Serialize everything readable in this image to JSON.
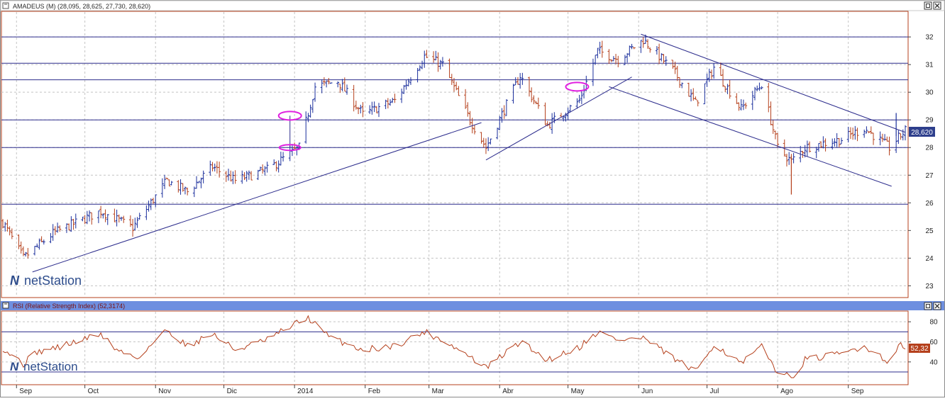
{
  "price_panel": {
    "title": "AMADEUS (M) (28,095, 28,625, 27,730, 28,620)",
    "last_price_label": "28,620",
    "watermark": "netStation",
    "y_ticks": [
      "32",
      "31",
      "30",
      "29",
      "28",
      "27",
      "26",
      "25",
      "24",
      "23"
    ]
  },
  "rsi_panel": {
    "title": "RSI (Relative Strength Index) (52,3174)",
    "last_value_label": "52,32",
    "watermark": "netStation",
    "y_ticks": [
      "80",
      "60",
      "40"
    ]
  },
  "x_axis": {
    "month_labels": [
      "Sep",
      "Oct",
      "Nov",
      "Dic",
      "2014",
      "Feb",
      "Mar",
      "Abr",
      "May",
      "Jun",
      "Jul",
      "Ago",
      "Sep"
    ]
  },
  "colors": {
    "up_bar": "#1a2e9c",
    "down_bar": "#b5401c",
    "trendline": "#2c2c8c",
    "horizontal_line": "#2c2c8c",
    "marker_ellipse": "#e020e0",
    "rsi_line": "#b5401c",
    "rsi_header_bg": "#6e8fe0",
    "price_badge": "#2e3f8c",
    "rsi_badge": "#b5401c"
  },
  "chart_data": [
    {
      "type": "ohlc",
      "title": "AMADEUS (M) (28,095, 28,625, 27,730, 28,620)",
      "ylim": [
        22.6,
        32.9
      ],
      "x_range": [
        "2013-08-26",
        "2014-09-26"
      ],
      "x_month_labels": [
        "Sep",
        "Oct",
        "Nov",
        "Dic",
        "2014",
        "Feb",
        "Mar",
        "Abr",
        "May",
        "Jun",
        "Jul",
        "Ago",
        "Sep"
      ],
      "y_ticks": [
        32,
        31,
        30,
        29,
        28,
        27,
        26,
        25,
        24,
        23
      ],
      "grid": true,
      "last_price": 28.62,
      "horizontal_levels": [
        32.0,
        31.05,
        30.45,
        29.0,
        28.0,
        25.95
      ],
      "close_keypoints": [
        {
          "date": "2013-08-26",
          "close": 25.3
        },
        {
          "date": "2013-09-04",
          "close": 24.0
        },
        {
          "date": "2013-09-17",
          "close": 24.9
        },
        {
          "date": "2013-10-08",
          "close": 25.7
        },
        {
          "date": "2013-10-22",
          "close": 25.1
        },
        {
          "date": "2013-11-06",
          "close": 26.8
        },
        {
          "date": "2013-11-15",
          "close": 26.4
        },
        {
          "date": "2013-11-26",
          "close": 27.3
        },
        {
          "date": "2013-12-06",
          "close": 26.8
        },
        {
          "date": "2013-12-20",
          "close": 27.2
        },
        {
          "date": "2014-01-03",
          "close": 28.0
        },
        {
          "date": "2014-01-10",
          "close": 30.2
        },
        {
          "date": "2014-01-20",
          "close": 30.4
        },
        {
          "date": "2014-01-31",
          "close": 29.2
        },
        {
          "date": "2014-02-14",
          "close": 29.7
        },
        {
          "date": "2014-02-27",
          "close": 31.3
        },
        {
          "date": "2014-03-07",
          "close": 31.0
        },
        {
          "date": "2014-03-19",
          "close": 29.0
        },
        {
          "date": "2014-03-26",
          "close": 28.0
        },
        {
          "date": "2014-04-02",
          "close": 29.2
        },
        {
          "date": "2014-04-10",
          "close": 30.6
        },
        {
          "date": "2014-04-22",
          "close": 28.8
        },
        {
          "date": "2014-05-06",
          "close": 29.7
        },
        {
          "date": "2014-05-14",
          "close": 31.5
        },
        {
          "date": "2014-05-23",
          "close": 31.2
        },
        {
          "date": "2014-06-03",
          "close": 31.9
        },
        {
          "date": "2014-06-16",
          "close": 30.8
        },
        {
          "date": "2014-06-26",
          "close": 29.6
        },
        {
          "date": "2014-07-04",
          "close": 30.9
        },
        {
          "date": "2014-07-16",
          "close": 29.4
        },
        {
          "date": "2014-07-25",
          "close": 30.3
        },
        {
          "date": "2014-08-01",
          "close": 28.0
        },
        {
          "date": "2014-08-07",
          "close": 27.5
        },
        {
          "date": "2014-08-13",
          "close": 28.0
        },
        {
          "date": "2014-08-29",
          "close": 28.3
        },
        {
          "date": "2014-09-08",
          "close": 28.7
        },
        {
          "date": "2014-09-19",
          "close": 28.0
        },
        {
          "date": "2014-09-26",
          "close": 28.62
        }
      ],
      "trendlines": [
        {
          "from": {
            "date": "2013-09-08",
            "value": 23.5
          },
          "to": {
            "date": "2014-03-24",
            "value": 28.9
          }
        },
        {
          "from": {
            "date": "2014-03-26",
            "value": 27.55
          },
          "to": {
            "date": "2014-05-29",
            "value": 30.55
          }
        },
        {
          "from": {
            "date": "2014-05-19",
            "value": 30.2
          },
          "to": {
            "date": "2014-09-20",
            "value": 26.6
          }
        },
        {
          "from": {
            "date": "2014-06-02",
            "value": 32.1
          },
          "to": {
            "date": "2014-09-26",
            "value": 28.55
          }
        }
      ],
      "markers": [
        {
          "date": "2013-12-30",
          "value": 29.15
        },
        {
          "date": "2013-12-30",
          "value": 28.0
        },
        {
          "date": "2014-05-05",
          "value": 30.2
        }
      ]
    },
    {
      "type": "line",
      "title": "RSI (Relative Strength Index) (52,3174)",
      "ylim": [
        18,
        90
      ],
      "y_ticks": [
        80,
        60,
        40
      ],
      "reference_lines": [
        70,
        30
      ],
      "last_value": 52.32,
      "keypoints": [
        {
          "date": "2013-08-26",
          "value": 54
        },
        {
          "date": "2013-09-04",
          "value": 38
        },
        {
          "date": "2013-09-10",
          "value": 50
        },
        {
          "date": "2013-09-20",
          "value": 55
        },
        {
          "date": "2013-10-08",
          "value": 68
        },
        {
          "date": "2013-10-15",
          "value": 52
        },
        {
          "date": "2013-10-24",
          "value": 44
        },
        {
          "date": "2013-11-06",
          "value": 72
        },
        {
          "date": "2013-11-15",
          "value": 56
        },
        {
          "date": "2013-11-26",
          "value": 68
        },
        {
          "date": "2013-12-06",
          "value": 52
        },
        {
          "date": "2013-12-20",
          "value": 62
        },
        {
          "date": "2014-01-03",
          "value": 80
        },
        {
          "date": "2014-01-07",
          "value": 84
        },
        {
          "date": "2014-01-16",
          "value": 65
        },
        {
          "date": "2014-01-31",
          "value": 52
        },
        {
          "date": "2014-02-14",
          "value": 56
        },
        {
          "date": "2014-02-27",
          "value": 70
        },
        {
          "date": "2014-03-07",
          "value": 62
        },
        {
          "date": "2014-03-19",
          "value": 45
        },
        {
          "date": "2014-03-26",
          "value": 34
        },
        {
          "date": "2014-04-10",
          "value": 60
        },
        {
          "date": "2014-04-22",
          "value": 42
        },
        {
          "date": "2014-05-06",
          "value": 55
        },
        {
          "date": "2014-05-14",
          "value": 70
        },
        {
          "date": "2014-05-23",
          "value": 62
        },
        {
          "date": "2014-06-03",
          "value": 64
        },
        {
          "date": "2014-06-16",
          "value": 44
        },
        {
          "date": "2014-06-26",
          "value": 30
        },
        {
          "date": "2014-07-04",
          "value": 58
        },
        {
          "date": "2014-07-16",
          "value": 38
        },
        {
          "date": "2014-07-25",
          "value": 55
        },
        {
          "date": "2014-08-01",
          "value": 30
        },
        {
          "date": "2014-08-07",
          "value": 24
        },
        {
          "date": "2014-08-13",
          "value": 42
        },
        {
          "date": "2014-08-29",
          "value": 48
        },
        {
          "date": "2014-09-08",
          "value": 56
        },
        {
          "date": "2014-09-19",
          "value": 40
        },
        {
          "date": "2014-09-23",
          "value": 58
        },
        {
          "date": "2014-09-26",
          "value": 52.32
        }
      ]
    }
  ]
}
